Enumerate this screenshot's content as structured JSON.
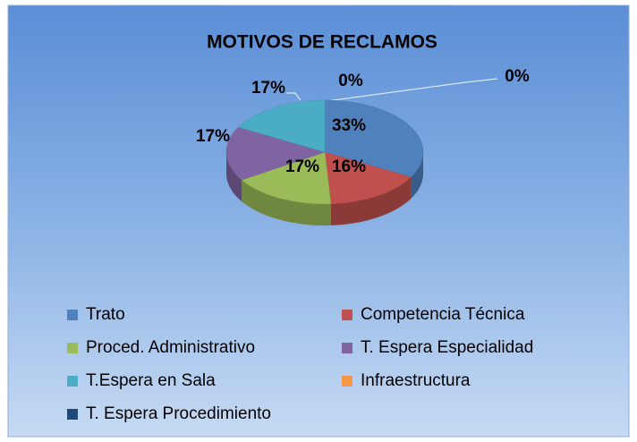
{
  "chart_data": {
    "type": "pie",
    "title": "MOTIVOS DE RECLAMOS",
    "categories": [
      "Trato",
      "Competencia Técnica",
      "Proced. Administrativo",
      "T. Espera Especialidad",
      "T.Espera en Sala",
      "Infraestructura",
      "T. Espera Procedimiento"
    ],
    "values": [
      33,
      16,
      17,
      17,
      17,
      0,
      0
    ],
    "value_labels": [
      "33%",
      "16%",
      "17%",
      "17%",
      "17%",
      "0%",
      "0%"
    ],
    "colors": [
      "#4f81bd",
      "#c0504d",
      "#9bbb59",
      "#8064a2",
      "#4bacc6",
      "#f79646",
      "#1f497d"
    ],
    "legend": "bottom"
  }
}
